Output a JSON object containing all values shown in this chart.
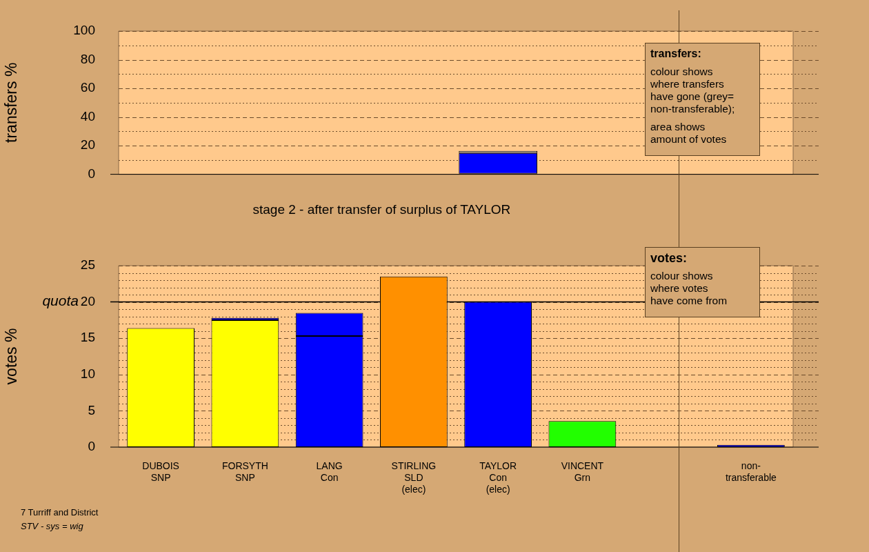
{
  "chart_data": [
    {
      "type": "bar",
      "ylabel": "transfers %",
      "categories": [
        null,
        null,
        null,
        null,
        null,
        null,
        null,
        null
      ],
      "stacked": true,
      "ylim": [
        0,
        100
      ],
      "yticks": [
        0,
        {
          "value": 10,
          "label": null
        },
        20,
        {
          "value": 30,
          "label": null
        },
        40,
        {
          "value": 50,
          "label": null
        },
        60,
        {
          "value": 70,
          "label": null
        },
        80,
        {
          "value": 90,
          "label": null
        },
        100
      ],
      "grid": true,
      "tick_labels": "y",
      "series": [
        {
          "color": "#ffff00",
          "values": [
            null,
            null,
            null,
            null,
            0.4,
            null,
            null,
            null
          ]
        },
        {
          "color": "#0000ff",
          "values": [
            null,
            null,
            null,
            null,
            14.5,
            null,
            null,
            null
          ]
        },
        {
          "color": "#b0b0b0",
          "values": [
            null,
            null,
            null,
            null,
            1.4,
            null,
            null,
            null
          ]
        }
      ],
      "annotations": [
        "transfers:",
        "colour shows\nwhere transfers\nhave gone (grey=\nnon-transferable);",
        "area shows\namount of votes"
      ]
    },
    {
      "type": "bar",
      "title": "stage 2 - after transfer of surplus of TAYLOR",
      "ylabel": "votes %",
      "categories": [
        "DUBOIS\nSNP",
        "FORSYTH\nSNP",
        "LANG\nCon",
        "STIRLING\nSLD\n(elec)",
        "TAYLOR\nCon\n(elec)",
        "VINCENT\nGrn",
        null,
        "non-\ntransferable"
      ],
      "stacked": true,
      "ylim": [
        0,
        25
      ],
      "yticks": [
        0,
        {
          "value": 1,
          "label": null
        },
        {
          "value": 2,
          "label": null
        },
        {
          "value": 3,
          "label": null
        },
        {
          "value": 4,
          "label": null
        },
        5,
        {
          "value": 6,
          "label": null
        },
        {
          "value": 7,
          "label": null
        },
        {
          "value": 8,
          "label": null
        },
        {
          "value": 9,
          "label": null
        },
        10,
        {
          "value": 11,
          "label": null
        },
        {
          "value": 12,
          "label": null
        },
        {
          "value": 13,
          "label": null
        },
        {
          "value": 14,
          "label": null
        },
        15,
        {
          "value": 16,
          "label": null
        },
        {
          "value": 17,
          "label": null
        },
        {
          "value": 18,
          "label": null
        },
        {
          "value": 19,
          "label": null
        },
        20,
        {
          "value": 21,
          "label": null
        },
        {
          "value": 22,
          "label": null
        },
        {
          "value": 23,
          "label": null
        },
        {
          "value": 24,
          "label": null
        },
        25
      ],
      "grid": true,
      "ref_lines": [
        {
          "axis": "y",
          "value": 20,
          "label": "quota",
          "color": "#000000",
          "line_style": "solid"
        }
      ],
      "series": [
        {
          "colors": [
            "#ffff00",
            "#ffff00",
            "#0000ff",
            "#ff9000",
            "#0000ff",
            "#22ff00",
            "#0000ff",
            "#0000ff"
          ],
          "values": [
            16.4,
            17.5,
            15.3,
            23.5,
            20,
            3.6,
            null,
            null
          ]
        },
        {
          "color": "#0000ff",
          "values": [
            null,
            0.3,
            3.2,
            null,
            null,
            null,
            null,
            0.3
          ]
        }
      ],
      "annotations": [
        "votes:",
        "colour shows\nwhere votes\nhave come from",
        "7 Turriff and District",
        "STV - sys = wig"
      ]
    }
  ]
}
